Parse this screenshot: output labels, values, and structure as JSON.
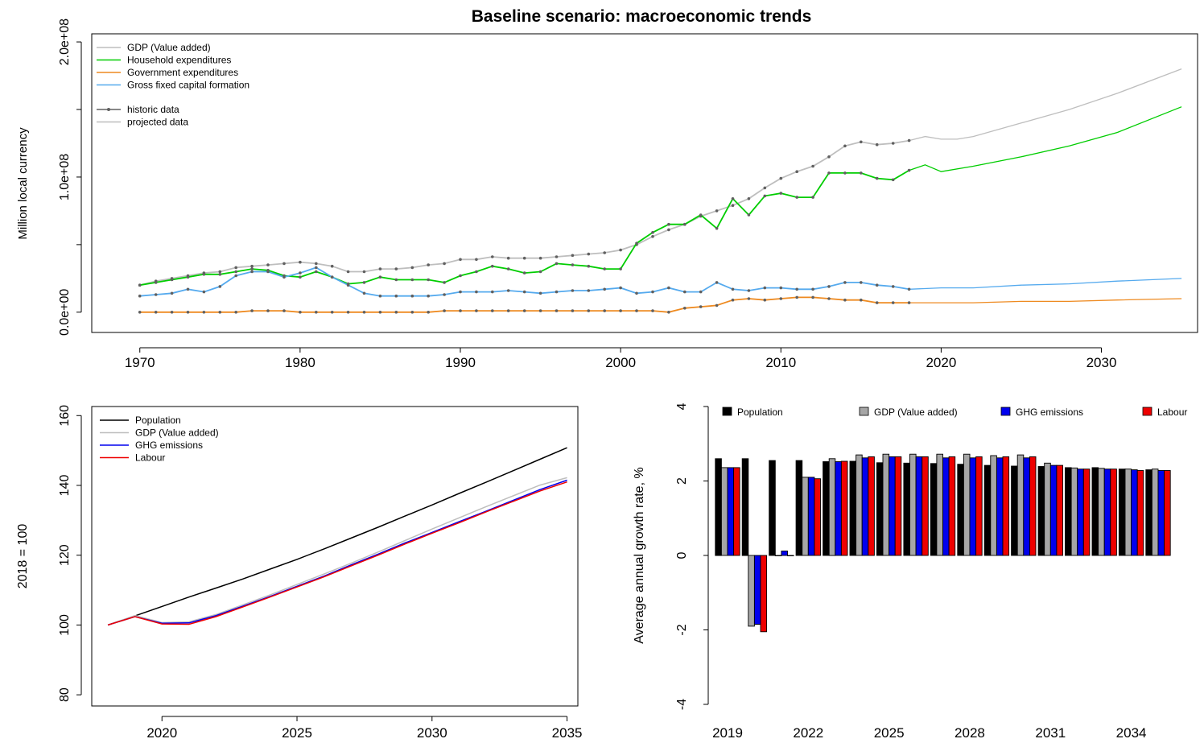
{
  "chart_data": [
    {
      "type": "line",
      "title": "Baseline scenario: macroeconomic trends",
      "xlabel": "",
      "ylabel": "Million local currency",
      "xlim": [
        1967,
        2036
      ],
      "ylim": [
        -15000000,
        206000000
      ],
      "xticks": [
        1970,
        1980,
        1990,
        2000,
        2010,
        2020,
        2030
      ],
      "yticks": [
        {
          "v": 0,
          "label": "0.0e+00"
        },
        {
          "v": 50000000,
          "label": ""
        },
        {
          "v": 100000000,
          "label": "1.0e+08"
        },
        {
          "v": 150000000,
          "label": ""
        },
        {
          "v": 200000000,
          "label": "2.0e+08"
        }
      ],
      "legend": {
        "position": "top-left",
        "series_entries": [
          {
            "label": "GDP (Value added)",
            "color": "#bebebe"
          },
          {
            "label": "Household expenditures",
            "color": "#00cd00"
          },
          {
            "label": "Government expenditures",
            "color": "#ee8a20"
          },
          {
            "label": "Gross fixed capital formation",
            "color": "#55aaee"
          }
        ],
        "type_entries": [
          {
            "label": "historic data",
            "color": "#606060",
            "marker": true
          },
          {
            "label": "projected data",
            "color": "#bebebe",
            "marker": false
          }
        ]
      },
      "historic_marker_color": "#606060",
      "series": [
        {
          "name": "GDP (Value added)",
          "color": "#bebebe",
          "historic": {
            "x": [
              1970,
              1971,
              1972,
              1973,
              1974,
              1975,
              1976,
              1977,
              1978,
              1979,
              1980,
              1981,
              1982,
              1983,
              1984,
              1985,
              1986,
              1987,
              1988,
              1989,
              1990,
              1991,
              1992,
              1993,
              1994,
              1995,
              1996,
              1997,
              1998,
              1999,
              2000,
              2001,
              2002,
              2003,
              2004,
              2005,
              2006,
              2007,
              2008,
              2009,
              2010,
              2011,
              2012,
              2013,
              2014,
              2015,
              2016,
              2017,
              2018
            ],
            "y": [
              20000000,
              23000000,
              25000000,
              27000000,
              29000000,
              30000000,
              33000000,
              34000000,
              35000000,
              36000000,
              37000000,
              36000000,
              34000000,
              30000000,
              30000000,
              32000000,
              32000000,
              33000000,
              35000000,
              36000000,
              39000000,
              39000000,
              41000000,
              40000000,
              40000000,
              40000000,
              41000000,
              42000000,
              43000000,
              44000000,
              46000000,
              50000000,
              56000000,
              61000000,
              65000000,
              71000000,
              75000000,
              79000000,
              84000000,
              92000000,
              99000000,
              104000000,
              108000000,
              115000000,
              123000000,
              126000000,
              124000000,
              125000000,
              127000000
            ]
          },
          "projected": {
            "x": [
              2018,
              2019,
              2020,
              2021,
              2022,
              2025,
              2028,
              2031,
              2035
            ],
            "y": [
              127000000,
              130000000,
              128000000,
              128000000,
              130000000,
              140000000,
              150000000,
              162000000,
              180000000
            ]
          }
        },
        {
          "name": "Household expenditures",
          "color": "#00cd00",
          "historic": {
            "x": [
              1970,
              1971,
              1972,
              1973,
              1974,
              1975,
              1976,
              1977,
              1978,
              1979,
              1980,
              1981,
              1982,
              1983,
              1984,
              1985,
              1986,
              1987,
              1988,
              1989,
              1990,
              1991,
              1992,
              1993,
              1994,
              1995,
              1996,
              1997,
              1998,
              1999,
              2000,
              2001,
              2002,
              2003,
              2004,
              2005,
              2006,
              2007,
              2008,
              2009,
              2010,
              2011,
              2012,
              2013,
              2014,
              2015,
              2016,
              2017,
              2018
            ],
            "y": [
              20000000,
              22000000,
              24000000,
              26000000,
              28000000,
              28000000,
              30000000,
              32000000,
              31000000,
              27000000,
              26000000,
              30000000,
              26000000,
              21000000,
              22000000,
              26000000,
              24000000,
              24000000,
              24000000,
              22000000,
              27000000,
              30000000,
              34000000,
              32000000,
              29000000,
              30000000,
              36000000,
              35000000,
              34000000,
              32000000,
              32000000,
              51000000,
              59000000,
              65000000,
              65000000,
              72000000,
              62000000,
              84000000,
              72000000,
              86000000,
              88000000,
              85000000,
              85000000,
              103000000,
              103000000,
              103000000,
              99000000,
              98000000,
              105000000
            ]
          },
          "projected": {
            "x": [
              2018,
              2019,
              2020,
              2022,
              2025,
              2028,
              2031,
              2035
            ],
            "y": [
              105000000,
              109000000,
              104000000,
              108000000,
              115000000,
              123000000,
              133000000,
              152000000
            ]
          }
        },
        {
          "name": "Government expenditures",
          "color": "#ee8a20",
          "historic": {
            "x": [
              1970,
              1971,
              1972,
              1973,
              1974,
              1975,
              1976,
              1977,
              1978,
              1979,
              1980,
              1981,
              1982,
              1983,
              1984,
              1985,
              1986,
              1987,
              1988,
              1989,
              1990,
              1991,
              1992,
              1993,
              1994,
              1995,
              1996,
              1997,
              1998,
              1999,
              2000,
              2001,
              2002,
              2003,
              2004,
              2005,
              2006,
              2007,
              2008,
              2009,
              2010,
              2011,
              2012,
              2013,
              2014,
              2015,
              2016,
              2017,
              2018
            ],
            "y": [
              0,
              0,
              0,
              0,
              0,
              0,
              0,
              1000000,
              1000000,
              1000000,
              0,
              0,
              0,
              0,
              0,
              0,
              0,
              0,
              0,
              1000000,
              1000000,
              1000000,
              1000000,
              1000000,
              1000000,
              1000000,
              1000000,
              1000000,
              1000000,
              1000000,
              1000000,
              1000000,
              1000000,
              0,
              3000000,
              4000000,
              5000000,
              9000000,
              10000000,
              9000000,
              10000000,
              11000000,
              11000000,
              10000000,
              9000000,
              9000000,
              7000000,
              7000000,
              7000000
            ]
          },
          "projected": {
            "x": [
              2018,
              2020,
              2022,
              2025,
              2028,
              2031,
              2035
            ],
            "y": [
              7000000,
              7000000,
              7000000,
              8000000,
              8000000,
              9000000,
              10000000
            ]
          }
        },
        {
          "name": "Gross fixed capital formation",
          "color": "#55aaee",
          "historic": {
            "x": [
              1970,
              1971,
              1972,
              1973,
              1974,
              1975,
              1976,
              1977,
              1978,
              1979,
              1980,
              1981,
              1982,
              1983,
              1984,
              1985,
              1986,
              1987,
              1988,
              1989,
              1990,
              1991,
              1992,
              1993,
              1994,
              1995,
              1996,
              1997,
              1998,
              1999,
              2000,
              2001,
              2002,
              2003,
              2004,
              2005,
              2006,
              2007,
              2008,
              2009,
              2010,
              2011,
              2012,
              2013,
              2014,
              2015,
              2016,
              2017,
              2018
            ],
            "y": [
              12000000,
              13000000,
              14000000,
              17000000,
              15000000,
              19000000,
              27000000,
              30000000,
              30000000,
              26000000,
              29000000,
              33000000,
              26000000,
              20000000,
              14000000,
              12000000,
              12000000,
              12000000,
              12000000,
              13000000,
              15000000,
              15000000,
              15000000,
              16000000,
              15000000,
              14000000,
              15000000,
              16000000,
              16000000,
              17000000,
              18000000,
              14000000,
              15000000,
              18000000,
              15000000,
              15000000,
              22000000,
              17000000,
              16000000,
              18000000,
              18000000,
              17000000,
              17000000,
              19000000,
              22000000,
              22000000,
              20000000,
              19000000,
              17000000
            ]
          },
          "projected": {
            "x": [
              2018,
              2020,
              2022,
              2025,
              2028,
              2031,
              2035
            ],
            "y": [
              17000000,
              18000000,
              18000000,
              20000000,
              21000000,
              23000000,
              25000000
            ]
          }
        }
      ]
    },
    {
      "type": "line",
      "title": "",
      "xlabel": "",
      "ylabel": "2018 = 100",
      "xlim": [
        2017.4,
        2035.4
      ],
      "ylim": [
        76.8,
        162.6
      ],
      "xticks": [
        2020,
        2025,
        2030,
        2035
      ],
      "yticks": [
        80,
        100,
        120,
        140,
        160
      ],
      "legend": {
        "position": "top-left"
      },
      "series": [
        {
          "name": "Population",
          "color": "#000000",
          "x": [
            2018,
            2019,
            2020,
            2021,
            2022,
            2023,
            2024,
            2025,
            2026,
            2027,
            2028,
            2029,
            2030,
            2031,
            2032,
            2033,
            2034,
            2035
          ],
          "values": [
            100,
            102.6,
            105.3,
            108.0,
            110.6,
            113.2,
            116.0,
            118.8,
            121.8,
            124.9,
            128.0,
            131.2,
            134.4,
            137.7,
            140.9,
            144.2,
            147.5,
            150.8
          ]
        },
        {
          "name": "GDP (Value added)",
          "color": "#bebebe",
          "x": [
            2018,
            2019,
            2020,
            2021,
            2022,
            2023,
            2024,
            2025,
            2026,
            2027,
            2028,
            2029,
            2030,
            2031,
            2032,
            2033,
            2034,
            2035
          ],
          "values": [
            100,
            102.7,
            100.7,
            100.9,
            103.0,
            105.8,
            108.6,
            111.6,
            114.6,
            117.7,
            120.9,
            124.2,
            127.5,
            130.7,
            133.9,
            137.0,
            140.1,
            142.2
          ]
        },
        {
          "name": "GHG emissions",
          "color": "#0000ee",
          "x": [
            2018,
            2019,
            2020,
            2021,
            2022,
            2023,
            2024,
            2025,
            2026,
            2027,
            2028,
            2029,
            2030,
            2031,
            2032,
            2033,
            2034,
            2035
          ],
          "values": [
            100,
            102.4,
            100.5,
            100.6,
            102.7,
            105.4,
            108.2,
            111.1,
            114.0,
            117.2,
            120.3,
            123.5,
            126.5,
            129.6,
            132.6,
            135.7,
            138.8,
            141.5
          ]
        },
        {
          "name": "Labour",
          "color": "#ee0000",
          "x": [
            2018,
            2019,
            2020,
            2021,
            2022,
            2023,
            2024,
            2025,
            2026,
            2027,
            2028,
            2029,
            2030,
            2031,
            2032,
            2033,
            2034,
            2035
          ],
          "values": [
            100,
            102.4,
            100.3,
            100.2,
            102.4,
            105.2,
            108.0,
            110.9,
            113.8,
            116.9,
            120.0,
            123.2,
            126.3,
            129.3,
            132.4,
            135.4,
            138.4,
            141.0
          ]
        }
      ]
    },
    {
      "type": "bar",
      "title": "",
      "xlabel": "",
      "ylabel": "Average annual growth rate, %",
      "ylim": [
        -4,
        4
      ],
      "yticks": [
        -4,
        -2,
        0,
        2,
        4
      ],
      "categories": [
        2019,
        2020,
        2021,
        2022,
        2023,
        2024,
        2025,
        2026,
        2027,
        2028,
        2029,
        2030,
        2031,
        2032,
        2033,
        2034,
        2035
      ],
      "tick_labels": [
        "2019",
        "",
        "",
        "2022",
        "",
        "",
        "2025",
        "",
        "",
        "2028",
        "",
        "",
        "2031",
        "",
        "",
        "2034",
        ""
      ],
      "legend": {
        "position": "top"
      },
      "series": [
        {
          "name": "Population",
          "color": "#000000",
          "values": [
            2.6,
            2.6,
            2.55,
            2.55,
            2.52,
            2.53,
            2.49,
            2.48,
            2.47,
            2.45,
            2.42,
            2.4,
            2.39,
            2.36,
            2.36,
            2.32,
            2.3
          ]
        },
        {
          "name": "GDP (Value added)",
          "color": "#a6a6a6",
          "values": [
            2.36,
            -1.9,
            0.0,
            2.1,
            2.6,
            2.7,
            2.72,
            2.72,
            2.72,
            2.72,
            2.68,
            2.7,
            2.48,
            2.35,
            2.34,
            2.32,
            2.32
          ]
        },
        {
          "name": "GHG emissions",
          "color": "#0000ee",
          "values": [
            2.36,
            -1.85,
            0.12,
            2.1,
            2.52,
            2.62,
            2.65,
            2.65,
            2.62,
            2.62,
            2.62,
            2.62,
            2.42,
            2.32,
            2.32,
            2.3,
            2.28
          ]
        },
        {
          "name": "Labour",
          "color": "#ee0000",
          "values": [
            2.36,
            -2.05,
            0.0,
            2.06,
            2.53,
            2.65,
            2.65,
            2.65,
            2.65,
            2.65,
            2.65,
            2.65,
            2.42,
            2.32,
            2.32,
            2.28,
            2.28
          ]
        }
      ]
    }
  ]
}
